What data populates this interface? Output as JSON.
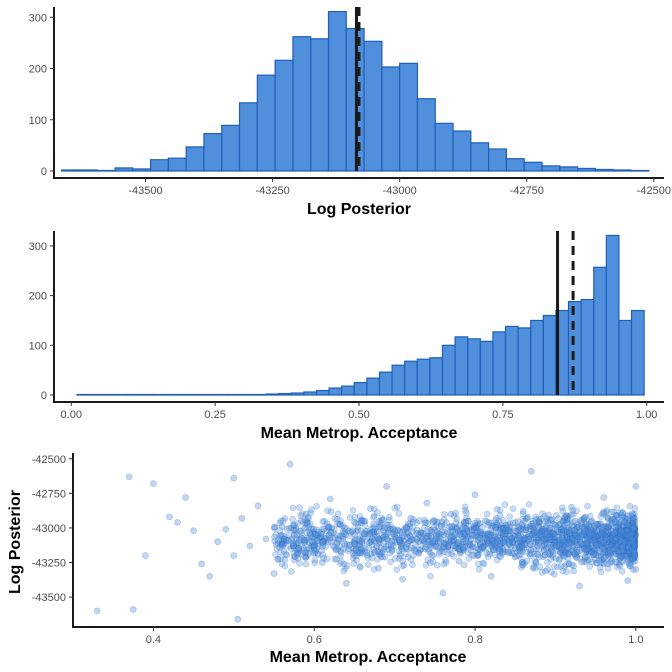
{
  "colors": {
    "bar_fill": "#4f8fdb",
    "bar_stroke": "#1f5fb8",
    "point_fill": "#4f8fdb",
    "vline": "#1a1a1a"
  },
  "chart_data": [
    {
      "type": "bar",
      "xlabel": "Log Posterior",
      "ylabel": "",
      "xlim": [
        -43680,
        -42480
      ],
      "ylim": [
        0,
        320
      ],
      "xticks": [
        -43500,
        -43250,
        -43000,
        -42750,
        -42500
      ],
      "xtick_labels": [
        "-43500",
        "-43250",
        "-43000",
        "-42750",
        "-42500"
      ],
      "yticks": [
        0,
        100,
        200,
        300
      ],
      "ytick_labels": [
        "0",
        "100",
        "200",
        "300"
      ],
      "bin_width": 35,
      "bin_starts": [
        -43665,
        -43630,
        -43595,
        -43560,
        -43525,
        -43490,
        -43455,
        -43420,
        -43385,
        -43350,
        -43315,
        -43280,
        -43245,
        -43210,
        -43175,
        -43140,
        -43105,
        -43070,
        -43035,
        -43000,
        -42965,
        -42930,
        -42895,
        -42860,
        -42825,
        -42790,
        -42755,
        -42720,
        -42685,
        -42650,
        -42615,
        -42580,
        -42545
      ],
      "values": [
        2,
        2,
        1,
        6,
        4,
        22,
        25,
        47,
        73,
        89,
        133,
        187,
        216,
        262,
        258,
        311,
        278,
        253,
        203,
        210,
        141,
        93,
        78,
        55,
        43,
        24,
        17,
        10,
        8,
        5,
        3,
        2,
        1
      ],
      "vlines": [
        {
          "x": -43085,
          "style": "solid"
        },
        {
          "x": -43080,
          "style": "dashed"
        }
      ]
    },
    {
      "type": "bar",
      "xlabel": "Mean Metrop. Acceptance",
      "ylabel": "",
      "xlim": [
        -0.03,
        1.03
      ],
      "ylim": [
        0,
        330
      ],
      "xticks": [
        0.0,
        0.25,
        0.5,
        0.75,
        1.0
      ],
      "xtick_labels": [
        "0.00",
        "0.25",
        "0.50",
        "0.75",
        "1.00"
      ],
      "yticks": [
        0,
        100,
        200,
        300
      ],
      "ytick_labels": [
        "0",
        "100",
        "200",
        "300"
      ],
      "bin_width": 0.0219,
      "bin_starts": [
        0.01,
        0.0319,
        0.0538,
        0.0757,
        0.0976,
        0.1195,
        0.1414,
        0.1633,
        0.1852,
        0.2071,
        0.229,
        0.2509,
        0.2728,
        0.2947,
        0.3166,
        0.3385,
        0.3604,
        0.3823,
        0.4042,
        0.4261,
        0.448,
        0.4699,
        0.4918,
        0.5137,
        0.5356,
        0.5575,
        0.5794,
        0.6013,
        0.6232,
        0.6451,
        0.667,
        0.6889,
        0.7108,
        0.7327,
        0.7546,
        0.7765,
        0.7984,
        0.8203,
        0.8422,
        0.8641,
        0.886,
        0.9079,
        0.9298,
        0.9517,
        0.9736
      ],
      "values": [
        1,
        1,
        1,
        1,
        1,
        1,
        1,
        1,
        1,
        1,
        1,
        1,
        1,
        1,
        1,
        2,
        3,
        4,
        6,
        9,
        14,
        18,
        25,
        34,
        46,
        60,
        68,
        72,
        75,
        100,
        117,
        113,
        108,
        127,
        138,
        135,
        150,
        160,
        170,
        188,
        192,
        257,
        321,
        150,
        170
      ],
      "vlines": [
        {
          "x": 0.845,
          "style": "solid"
        },
        {
          "x": 0.872,
          "style": "dashed"
        }
      ]
    },
    {
      "type": "scatter",
      "xlabel": "Mean Metrop. Acceptance",
      "ylabel": "Log Posterior",
      "xlim": [
        0.3,
        1.035
      ],
      "ylim": [
        -43680,
        -42480
      ],
      "xticks": [
        0.4,
        0.6,
        0.8,
        1.0
      ],
      "xtick_labels": [
        "0.4",
        "0.6",
        "0.8",
        "1.0"
      ],
      "yticks": [
        -42500,
        -42750,
        -43000,
        -43250,
        -43500
      ],
      "ytick_labels": [
        "-42500",
        "-42750",
        "-43000",
        "-43250",
        "-43500"
      ],
      "points": [
        [
          0.33,
          -43600
        ],
        [
          0.37,
          -42630
        ],
        [
          0.375,
          -43590
        ],
        [
          0.39,
          -43200
        ],
        [
          0.4,
          -42680
        ],
        [
          0.42,
          -42920
        ],
        [
          0.43,
          -42960
        ],
        [
          0.44,
          -42780
        ],
        [
          0.45,
          -43020
        ],
        [
          0.46,
          -43260
        ],
        [
          0.47,
          -43350
        ],
        [
          0.48,
          -43100
        ],
        [
          0.49,
          -43010
        ],
        [
          0.5,
          -43200
        ],
        [
          0.5,
          -42640
        ],
        [
          0.505,
          -43660
        ],
        [
          0.51,
          -42930
        ],
        [
          0.52,
          -43130
        ],
        [
          0.53,
          -42840
        ],
        [
          0.54,
          -43080
        ],
        [
          0.55,
          -43330
        ],
        [
          0.56,
          -42990
        ],
        [
          0.57,
          -42540
        ],
        [
          0.58,
          -43180
        ],
        [
          0.59,
          -42900
        ],
        [
          0.6,
          -43030
        ],
        [
          0.61,
          -43250
        ],
        [
          0.62,
          -42790
        ],
        [
          0.63,
          -43080
        ],
        [
          0.64,
          -43400
        ],
        [
          0.65,
          -42960
        ],
        [
          0.66,
          -43150
        ],
        [
          0.67,
          -42860
        ],
        [
          0.68,
          -43290
        ],
        [
          0.69,
          -42700
        ],
        [
          0.7,
          -43050
        ],
        [
          0.71,
          -43370
        ],
        [
          0.72,
          -42930
        ],
        [
          0.73,
          -43180
        ],
        [
          0.74,
          -42820
        ],
        [
          0.75,
          -43100
        ],
        [
          0.76,
          -43470
        ],
        [
          0.77,
          -42900
        ],
        [
          0.78,
          -43240
        ],
        [
          0.79,
          -43020
        ],
        [
          0.8,
          -42760
        ],
        [
          0.81,
          -43140
        ],
        [
          0.82,
          -43350
        ],
        [
          0.83,
          -42950
        ],
        [
          0.84,
          -43080
        ],
        [
          0.85,
          -43210
        ],
        [
          0.86,
          -42880
        ],
        [
          0.87,
          -42590
        ],
        [
          0.88,
          -43050
        ],
        [
          0.89,
          -43300
        ],
        [
          0.9,
          -42980
        ],
        [
          0.91,
          -43160
        ],
        [
          0.92,
          -42850
        ],
        [
          0.93,
          -43420
        ],
        [
          0.94,
          -43010
        ],
        [
          0.95,
          -43230
        ],
        [
          0.96,
          -42780
        ],
        [
          0.97,
          -43120
        ],
        [
          0.98,
          -42960
        ],
        [
          0.99,
          -43380
        ],
        [
          1.0,
          -43050
        ],
        [
          1.0,
          -42700
        ],
        [
          1.0,
          -43300
        ]
      ]
    }
  ]
}
